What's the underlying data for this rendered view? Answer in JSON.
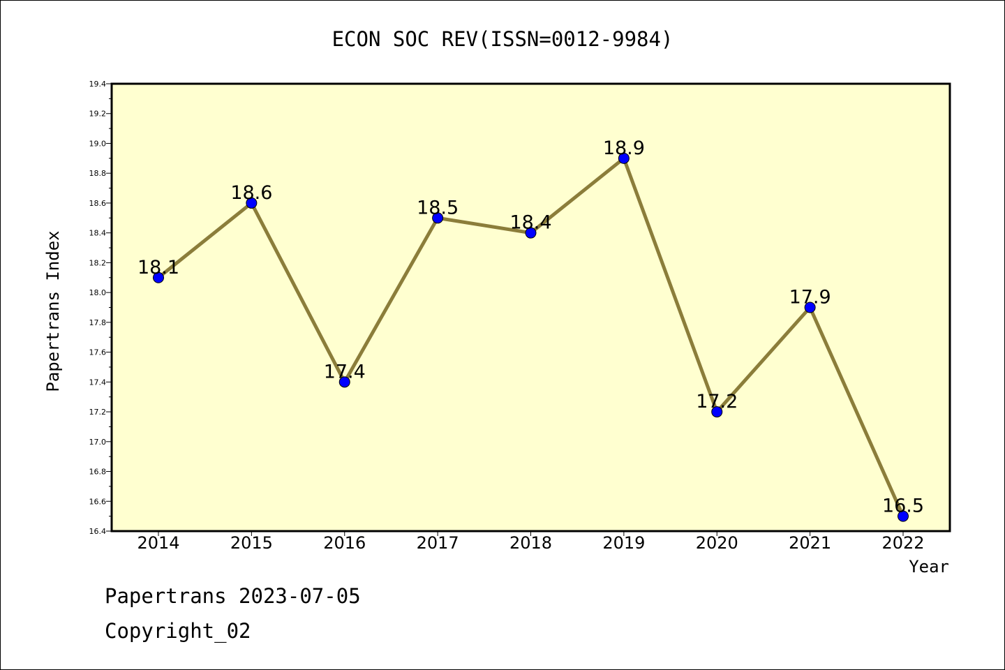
{
  "chart_data": {
    "type": "line",
    "title": "ECON SOC REV(ISSN=0012-9984)",
    "xlabel": "Year",
    "ylabel": "Papertrans Index",
    "categories": [
      "2014",
      "2015",
      "2016",
      "2017",
      "2018",
      "2019",
      "2020",
      "2021",
      "2022"
    ],
    "values": [
      18.1,
      18.6,
      17.4,
      18.5,
      18.4,
      18.9,
      17.2,
      17.9,
      16.5
    ],
    "data_labels": [
      "18.1",
      "18.6",
      "17.4",
      "18.5",
      "18.4",
      "18.9",
      "17.2",
      "17.9",
      "16.5"
    ],
    "ylim": [
      16.4,
      19.4
    ],
    "yticks": [
      "16.4",
      "16.6",
      "16.8",
      "17.0",
      "17.2",
      "17.4",
      "17.6",
      "17.8",
      "18.0",
      "18.2",
      "18.4",
      "18.6",
      "18.8",
      "19.0",
      "19.2",
      "19.4"
    ],
    "grid": false,
    "colors": {
      "plot_background": "#ffffd0",
      "line": "#8b7d3a",
      "marker": "#0000ff"
    }
  },
  "footer": {
    "line1": "Papertrans 2023-07-05",
    "line2": "Copyright_02"
  }
}
